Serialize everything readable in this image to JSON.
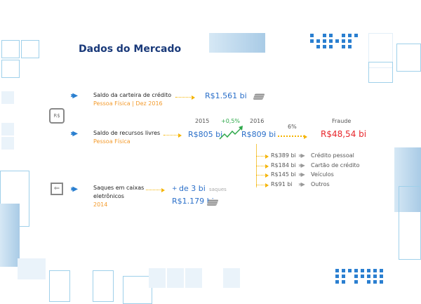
{
  "title": "Dados do Mercado",
  "colors": {
    "title": "#1a3a7a",
    "value": "#2a6fc9",
    "accent": "#f39a2b",
    "fraud": "#e8262b",
    "growth": "#2ea84a"
  },
  "credit": {
    "label": "Saldo da carteira de crédito",
    "sub": "Pessoa Física | Dez 2016",
    "value": "R$1.561 bi",
    "icon": "money-stack-icon"
  },
  "free": {
    "label": "Saldo de recursos livres",
    "sub": "Pessoa Física",
    "year_a": "2015",
    "value_a": "R$805 bi",
    "growth": "+0,5%",
    "year_b": "2016",
    "value_b": "R$809 bi",
    "fraud_pct": "6%",
    "fraud_label": "Fraude",
    "fraud_value": "R$48,54 bi",
    "items": [
      {
        "value": "R$389 bi",
        "label": "Crédito pessoal"
      },
      {
        "value": "R$184 bi",
        "label": "Cartão de crédito"
      },
      {
        "value": "R$145 bi",
        "label": "Veículos"
      },
      {
        "value": "R$91 bi",
        "label": "Outros"
      }
    ]
  },
  "atm": {
    "label_line1": "Saques em caixas",
    "label_line2": "eletrônicos",
    "sub": "2014",
    "count_prefix": "+",
    "count": "de 3 bi",
    "count_unit": "saques",
    "value": "R$1.179 bi",
    "icon": "atm-withdraw-icon"
  }
}
